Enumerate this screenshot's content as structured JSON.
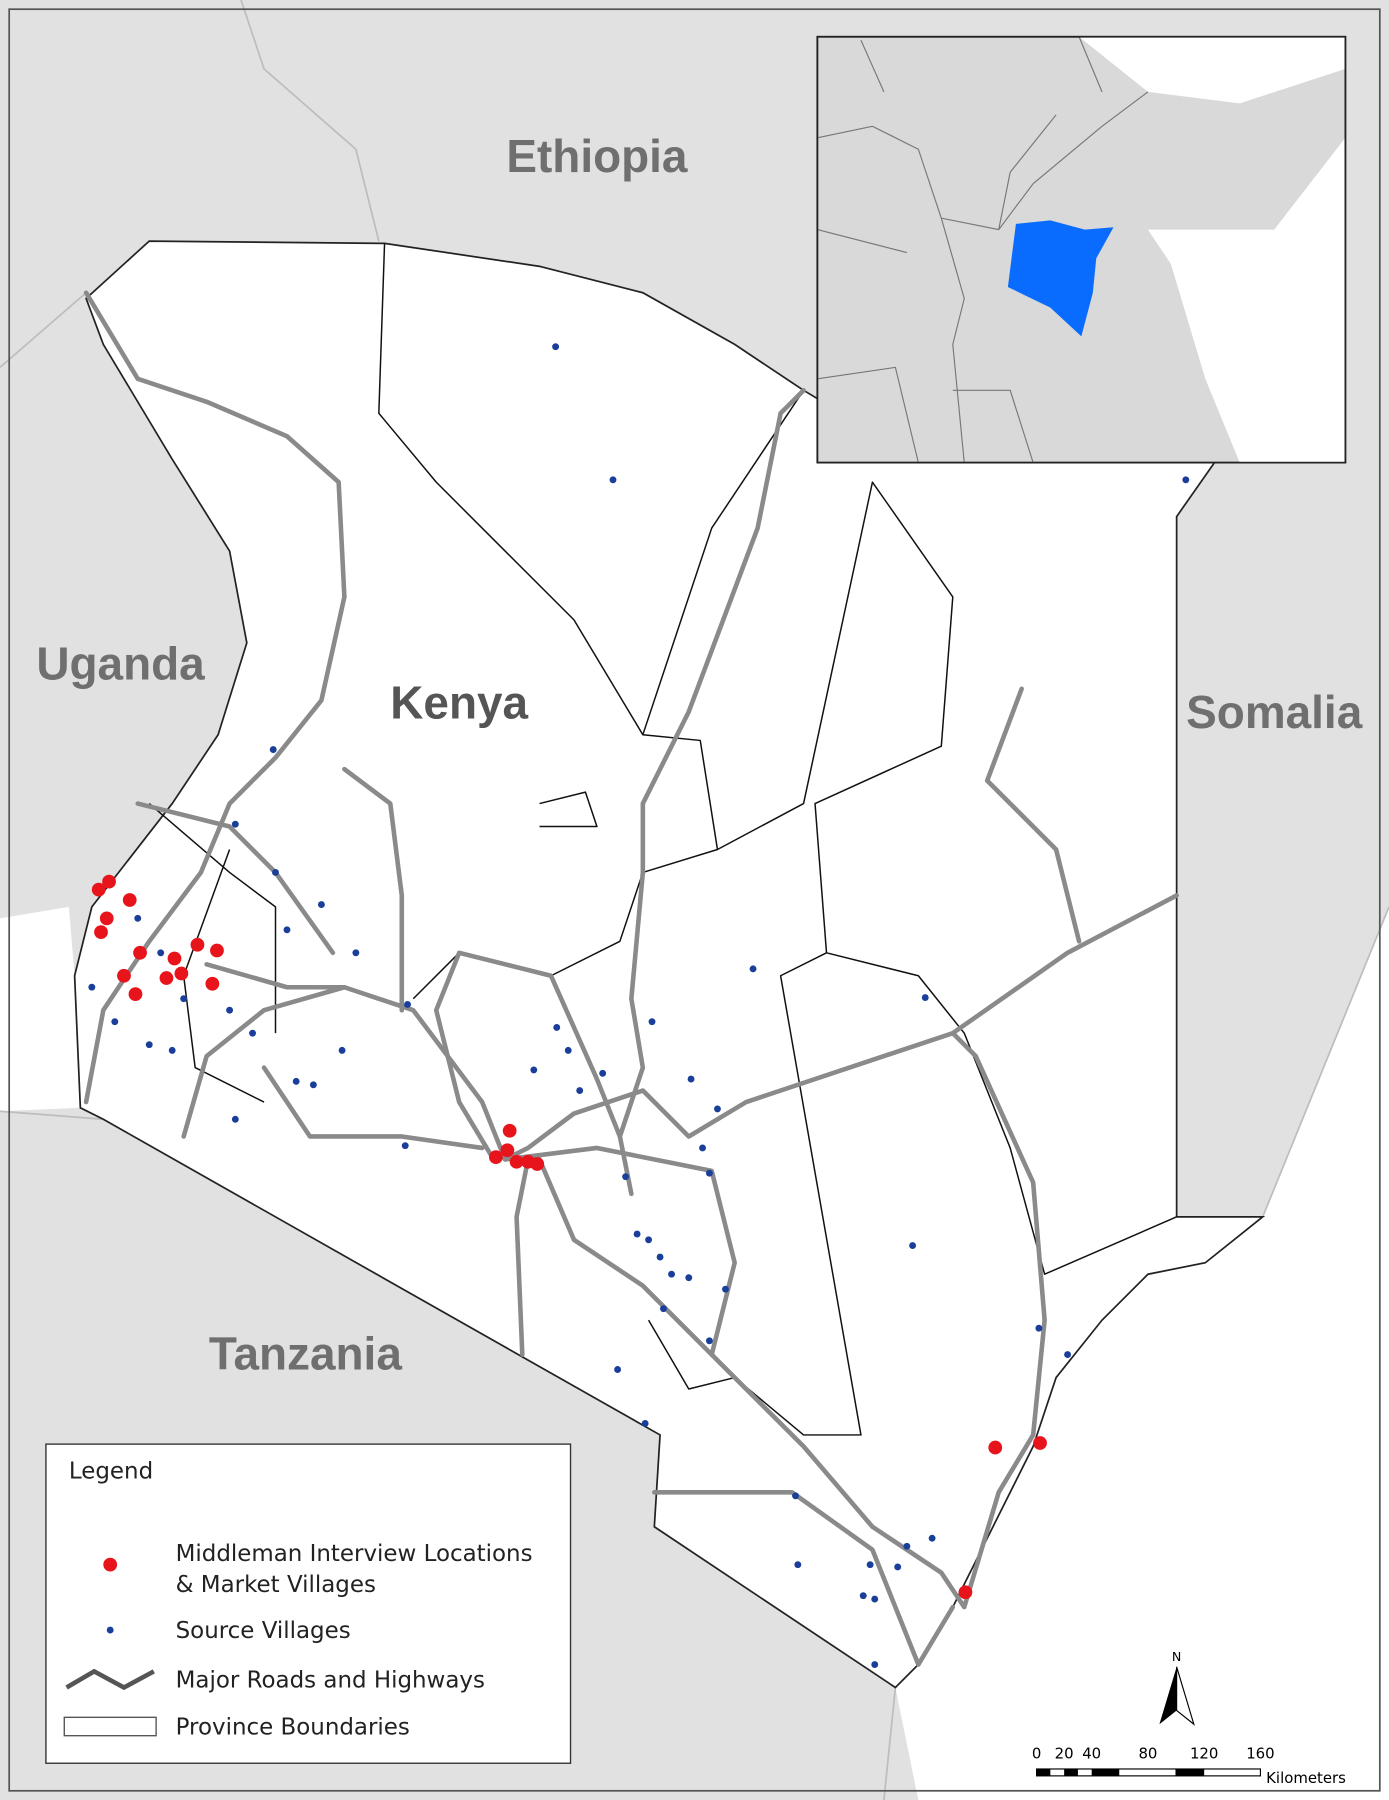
{
  "map": {
    "countries": {
      "ethiopia": "Ethiopia",
      "uganda": "Uganda",
      "kenya": "Kenya",
      "somalia": "Somalia",
      "tanzania": "Tanzania"
    },
    "legend": {
      "title": "Legend",
      "items": [
        {
          "lines": [
            "Middleman Interview Locations",
            "& Market Villages"
          ]
        },
        {
          "lines": [
            "Source Villages"
          ]
        },
        {
          "lines": [
            "Major Roads and Highways"
          ]
        },
        {
          "lines": [
            "Province Boundaries"
          ]
        }
      ]
    },
    "scale_bar": {
      "ticks": [
        "0",
        "20",
        "40",
        "80",
        "120",
        "160"
      ],
      "unit": "Kilometers"
    },
    "north": "N"
  }
}
